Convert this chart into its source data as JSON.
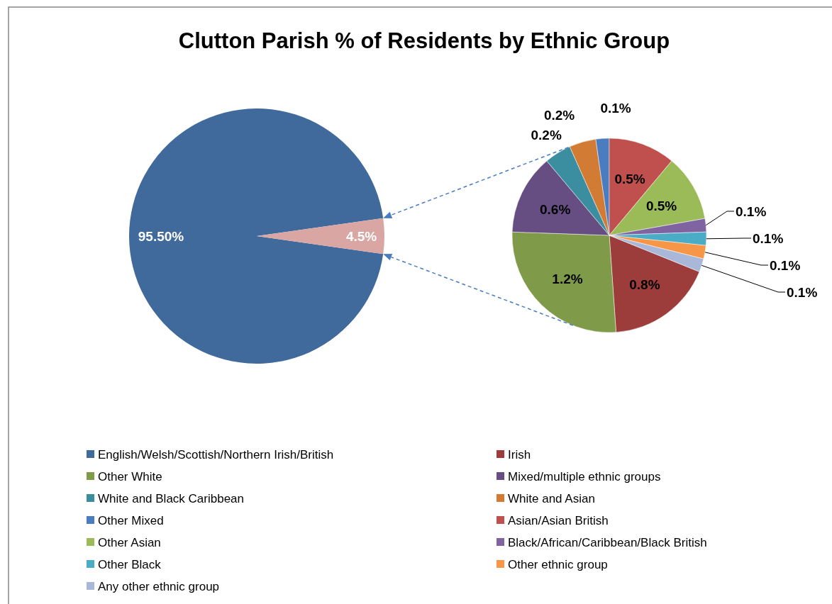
{
  "chart_data": [
    {
      "type": "pie",
      "title": "Clutton Parish % of Residents by Ethnic Group",
      "categories": [
        "English/Welsh/Scottish/Northern Irish/British",
        null
      ],
      "values": [
        95.5,
        4.5
      ],
      "value_labels": [
        "95.50%",
        "4.5%"
      ],
      "colors": [
        "#3f6a9b",
        "#d9a6a4"
      ],
      "legend": "bottom"
    },
    {
      "type": "pie",
      "categories": [
        "Irish",
        "Other White",
        "Mixed/multiple ethnic groups",
        "White and Black Caribbean",
        "White and Asian",
        "Other Mixed",
        "Asian/Asian British",
        "Other Asian",
        "Black/African/Caribbean/Black British",
        "Other Black",
        "Other ethnic group",
        "Any other ethnic group"
      ],
      "values": [
        0.8,
        1.2,
        0.6,
        0.2,
        0.2,
        0.1,
        0.5,
        0.5,
        0.1,
        0.1,
        0.1,
        0.1
      ],
      "value_labels": [
        "0.8%",
        "1.2%",
        "0.6%",
        "0.2%",
        "0.2%",
        "0.1%",
        "0.5%",
        "0.5%",
        "0.1%",
        "0.1%",
        "0.1%",
        "0.1%"
      ],
      "colors": [
        "#9c3d3b",
        "#7f9a48",
        "#664e83",
        "#3b8ea0",
        "#d27b35",
        "#4a7cc0",
        "#c0504d",
        "#9bbb59",
        "#8064a2",
        "#4bacc6",
        "#f79646",
        "#a9b7d8"
      ],
      "legend": "bottom"
    }
  ]
}
